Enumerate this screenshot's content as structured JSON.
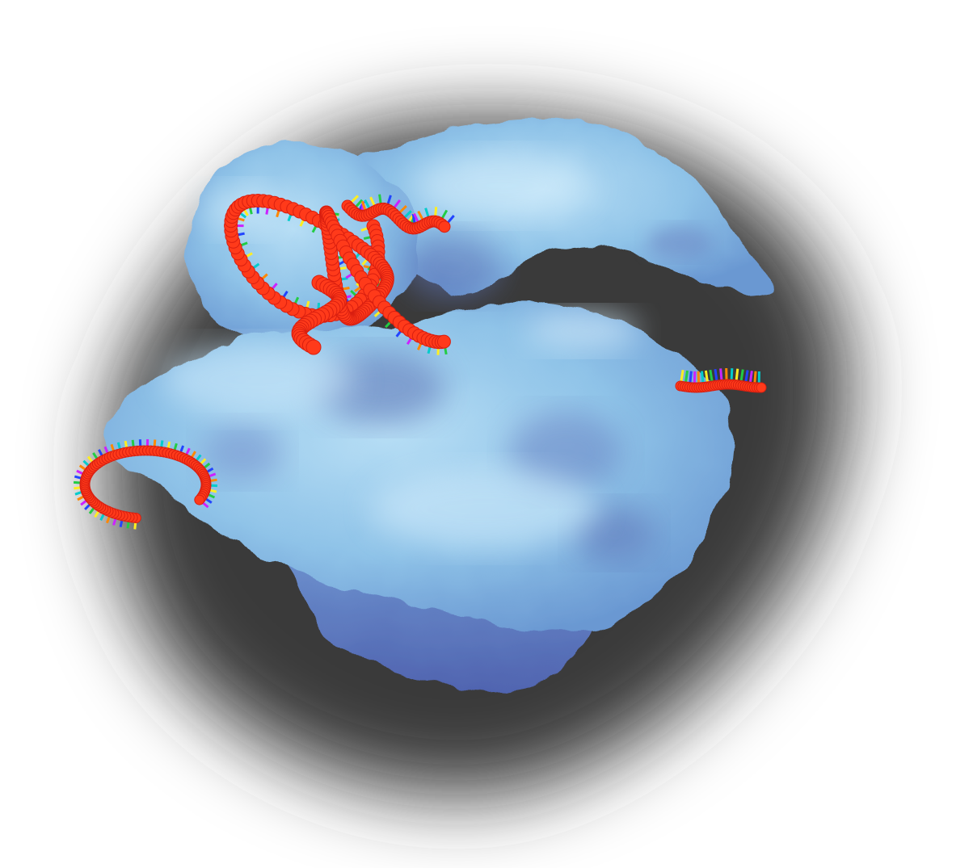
{
  "image": {
    "subject": "ribosome-with-rna",
    "colors": {
      "background": "#ffffff",
      "shadow": "#3a3a3a",
      "protein_light": "#a9d6f2",
      "protein_mid": "#86bde6",
      "protein_dark": "#5d8fcc",
      "protein_deep": "#4a63a8",
      "rna_backbone": "#ff3a1a",
      "rna_backbone_dark": "#d91f10",
      "base_colors": [
        "#ffee22",
        "#22cc44",
        "#2244ff",
        "#cc22ff",
        "#ff8800",
        "#00cccc"
      ]
    }
  }
}
